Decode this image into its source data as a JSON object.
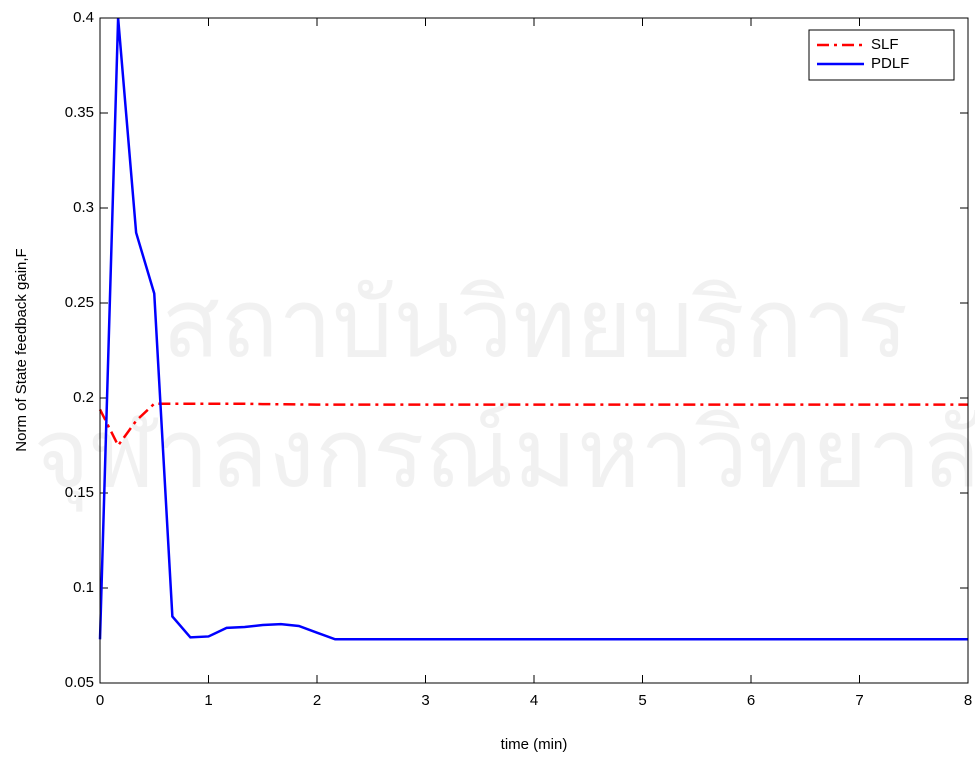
{
  "chart_data": {
    "type": "line",
    "xlabel": "time (min)",
    "ylabel": "Norm of State feedback gain,F",
    "watermark": [
      "สถาบันวิทยบริการ",
      "จุฬาลงกรณ์มหาวิทยาลัย"
    ],
    "x": [
      0,
      0.167,
      0.333,
      0.5,
      0.667,
      0.833,
      1,
      1.167,
      1.333,
      1.5,
      1.667,
      1.833,
      2,
      2.167,
      3,
      4,
      5,
      6,
      7,
      8
    ],
    "series": [
      {
        "name": "SLF",
        "color": "#ff0000",
        "linestyle": "dashdot",
        "values": [
          0.194,
          0.175,
          0.188,
          0.197,
          0.197,
          0.197,
          0.197,
          0.197,
          0.197,
          0.1968,
          0.1967,
          0.1966,
          0.1965,
          0.1965,
          0.1965,
          0.1965,
          0.1965,
          0.1965,
          0.1965,
          0.1965
        ]
      },
      {
        "name": "PDLF",
        "color": "#0000ff",
        "linestyle": "solid",
        "values": [
          0.073,
          0.4,
          0.287,
          0.255,
          0.085,
          0.074,
          0.0745,
          0.079,
          0.0795,
          0.0805,
          0.081,
          0.08,
          0.0765,
          0.073,
          0.073,
          0.073,
          0.073,
          0.073,
          0.073,
          0.073
        ]
      }
    ],
    "xlim": [
      0,
      8
    ],
    "xticks": [
      0,
      1,
      2,
      3,
      4,
      5,
      6,
      7,
      8
    ],
    "ylim": [
      0.05,
      0.4
    ],
    "yticks": [
      0.05,
      0.1,
      0.15,
      0.2,
      0.25,
      0.3,
      0.35,
      0.4
    ],
    "legend": "upper right",
    "grid": false
  }
}
